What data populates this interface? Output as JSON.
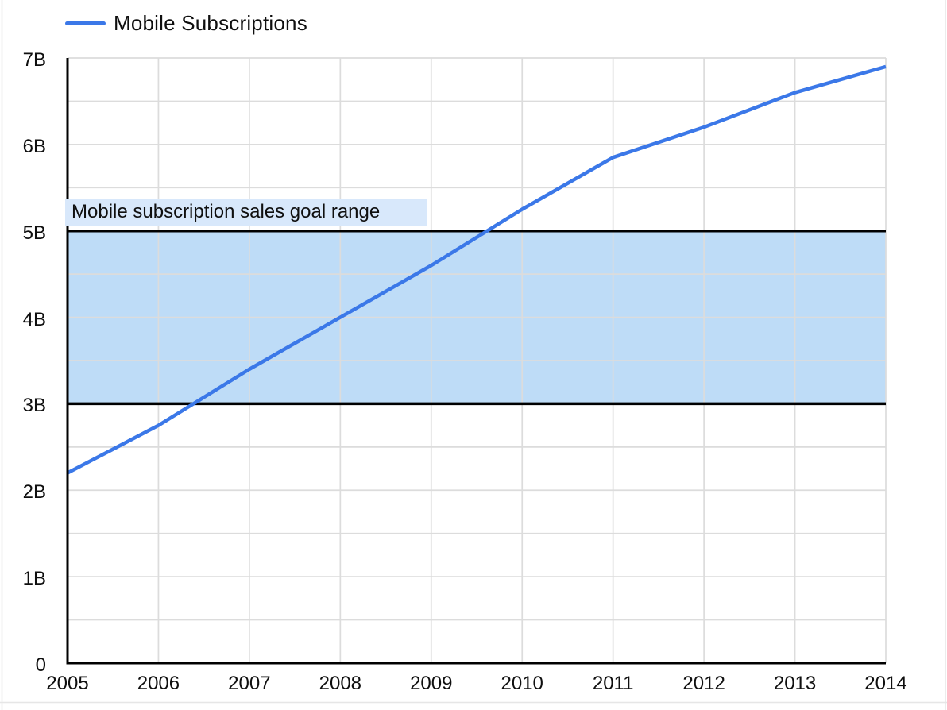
{
  "legend": {
    "label": "Mobile Subscriptions"
  },
  "colors": {
    "series_line": "#3B78E8",
    "band_fill": "#BEDCF7",
    "band_border": "#000000",
    "chip_bg": "#D8E8FB",
    "grid": "#DCDCDC",
    "axis": "#000000",
    "text": "#0f0f0f",
    "sheet_edge": "#E6E6E6"
  },
  "chart_data": {
    "type": "line",
    "title": "",
    "x": [
      2005,
      2006,
      2007,
      2008,
      2009,
      2010,
      2011,
      2012,
      2013,
      2014
    ],
    "xtick_labels": [
      "2005",
      "2006",
      "2007",
      "2008",
      "2009",
      "2010",
      "2011",
      "2012",
      "2013",
      "2014"
    ],
    "series": [
      {
        "name": "Mobile Subscriptions",
        "unit": "billions",
        "values": [
          2.2,
          2.75,
          3.4,
          4.0,
          4.6,
          5.25,
          5.85,
          6.2,
          6.6,
          6.9
        ]
      }
    ],
    "band": {
      "from": 3,
      "to": 5,
      "label": "Mobile subscription sales goal range"
    },
    "ylim": [
      0,
      7
    ],
    "ytick_labels": [
      "0",
      "1B",
      "2B",
      "3B",
      "4B",
      "5B",
      "6B",
      "7B"
    ],
    "grid": {
      "horizontal_step_billions": 0.5,
      "vertical": "every-year",
      "color": "light-gray"
    },
    "legend_position": "top-left"
  }
}
